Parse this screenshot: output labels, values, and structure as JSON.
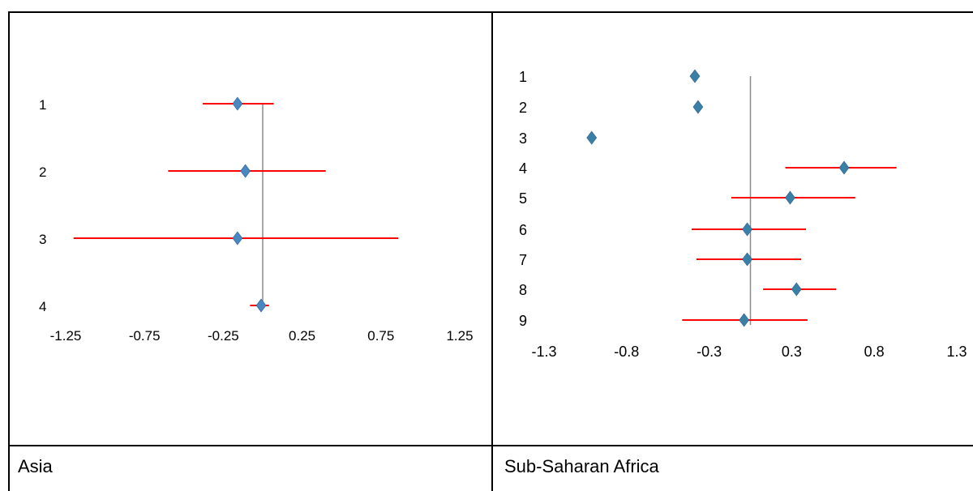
{
  "captions": {
    "left": "Asia",
    "right": "Sub-Saharan Africa"
  },
  "colors": {
    "marker": "#4a86c0",
    "marker_right": "#3a7fa6",
    "interval": "#ff0000",
    "reference_line": "#8c8c8c"
  },
  "chart_data": [
    {
      "type": "scatter",
      "title": "Asia",
      "marker": "diamond",
      "error_bars": "horizontal",
      "reference_line": 0,
      "xlim": [
        -1.25,
        1.25
      ],
      "x_ticks": [
        "-1.25",
        "-0.75",
        "-0.25",
        "0.25",
        "0.75",
        "1.25"
      ],
      "y_labels": [
        "1",
        "2",
        "3",
        "4"
      ],
      "points": [
        {
          "label": "1",
          "estimate": -0.16,
          "low": -0.38,
          "high": 0.07
        },
        {
          "label": "2",
          "estimate": -0.11,
          "low": -0.6,
          "high": 0.4
        },
        {
          "label": "3",
          "estimate": -0.16,
          "low": -1.2,
          "high": 0.86
        },
        {
          "label": "4",
          "estimate": -0.01,
          "low": -0.08,
          "high": 0.04
        }
      ]
    },
    {
      "type": "scatter",
      "title": "Sub-Saharan Africa",
      "marker": "diamond",
      "error_bars": "horizontal",
      "reference_line": 0,
      "xlim": [
        -1.3,
        1.3
      ],
      "x_ticks": [
        "-1.3",
        "-0.8",
        "-0.3",
        "0.3",
        "0.8",
        "1.3"
      ],
      "y_labels": [
        "1",
        "2",
        "3",
        "4",
        "5",
        "6",
        "7",
        "8",
        "9"
      ],
      "points": [
        {
          "label": "1",
          "estimate": -0.35,
          "low": null,
          "high": null
        },
        {
          "label": "2",
          "estimate": -0.33,
          "low": null,
          "high": null
        },
        {
          "label": "3",
          "estimate": -1.0,
          "low": null,
          "high": null
        },
        {
          "label": "4",
          "estimate": 0.59,
          "low": 0.22,
          "high": 0.92
        },
        {
          "label": "5",
          "estimate": 0.25,
          "low": -0.12,
          "high": 0.66
        },
        {
          "label": "6",
          "estimate": -0.02,
          "low": -0.37,
          "high": 0.35
        },
        {
          "label": "7",
          "estimate": -0.02,
          "low": -0.34,
          "high": 0.32
        },
        {
          "label": "8",
          "estimate": 0.29,
          "low": 0.08,
          "high": 0.54
        },
        {
          "label": "9",
          "estimate": -0.04,
          "low": -0.43,
          "high": 0.36
        }
      ]
    }
  ]
}
